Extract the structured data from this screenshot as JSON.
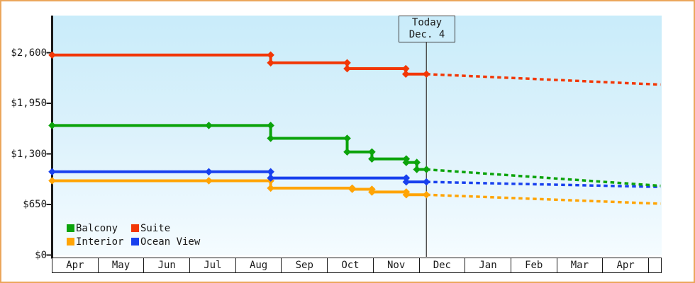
{
  "chart_data": {
    "type": "line",
    "subtype": "step-price-history",
    "title": "",
    "xlabel": "",
    "ylabel": "",
    "x_labels": [
      "Apr",
      "May",
      "Jun",
      "Jul",
      "Aug",
      "Sep",
      "Oct",
      "Nov",
      "Dec",
      "Jan",
      "Feb",
      "Mar",
      "Apr"
    ],
    "y_axis": {
      "min": 0,
      "max": 2600,
      "tick_step": 650,
      "ticks": [
        {
          "value": 2600,
          "label": "$2,600"
        },
        {
          "value": 1950,
          "label": "$1,950"
        },
        {
          "value": 1300,
          "label": "$1,300"
        },
        {
          "value": 650,
          "label": "$650"
        },
        {
          "value": 0,
          "label": "$0"
        }
      ]
    },
    "x_max": 13.28,
    "today": {
      "line1": "Today",
      "line2": "Dec. 4",
      "x": 8.17
    },
    "grid": false,
    "legend_position": "bottom-left-inside",
    "legend_order": [
      "Balcony",
      "Suite",
      "Interior",
      "Ocean View"
    ],
    "series": [
      {
        "name": "Interior",
        "color": "#ffa405",
        "points": [
          [
            0,
            955
          ],
          [
            4.77,
            955
          ],
          [
            4.77,
            860
          ],
          [
            6.55,
            860
          ],
          [
            6.55,
            845
          ],
          [
            6.98,
            845
          ],
          [
            6.98,
            810
          ],
          [
            7.73,
            810
          ],
          [
            7.73,
            775
          ],
          [
            8.17,
            775
          ]
        ],
        "extra_markers": [
          [
            3.42,
            955
          ]
        ],
        "forecast": [
          [
            8.17,
            775
          ],
          [
            13.28,
            660
          ]
        ]
      },
      {
        "name": "Ocean View",
        "color": "#1840ee",
        "points": [
          [
            0,
            1070
          ],
          [
            4.77,
            1070
          ],
          [
            4.77,
            990
          ],
          [
            7.73,
            990
          ],
          [
            7.73,
            940
          ],
          [
            8.17,
            940
          ]
        ],
        "extra_markers": [
          [
            3.42,
            1070
          ]
        ],
        "forecast": [
          [
            8.17,
            940
          ],
          [
            13.28,
            875
          ]
        ]
      },
      {
        "name": "Balcony",
        "color": "#0ba30b",
        "points": [
          [
            0,
            1665
          ],
          [
            4.77,
            1665
          ],
          [
            4.77,
            1500
          ],
          [
            6.44,
            1500
          ],
          [
            6.44,
            1325
          ],
          [
            6.98,
            1325
          ],
          [
            6.98,
            1235
          ],
          [
            7.73,
            1235
          ],
          [
            7.73,
            1190
          ],
          [
            7.96,
            1190
          ],
          [
            7.96,
            1100
          ],
          [
            8.17,
            1100
          ]
        ],
        "extra_markers": [
          [
            3.42,
            1665
          ]
        ],
        "forecast": [
          [
            8.17,
            1100
          ],
          [
            13.28,
            890
          ]
        ]
      },
      {
        "name": "Suite",
        "color": "#f23705",
        "points": [
          [
            0,
            2570
          ],
          [
            4.77,
            2570
          ],
          [
            4.77,
            2470
          ],
          [
            6.44,
            2470
          ],
          [
            6.44,
            2395
          ],
          [
            7.72,
            2395
          ],
          [
            7.72,
            2325
          ],
          [
            8.17,
            2325
          ]
        ],
        "extra_markers": [],
        "forecast": [
          [
            8.17,
            2325
          ],
          [
            13.28,
            2190
          ]
        ]
      }
    ]
  },
  "colors": {
    "frame_border": "#eba65c",
    "axis": "#1a1a1a",
    "today_line": "#4d4d4d",
    "text": "#1a1a1a",
    "month_box_bg": "#ffffff"
  }
}
